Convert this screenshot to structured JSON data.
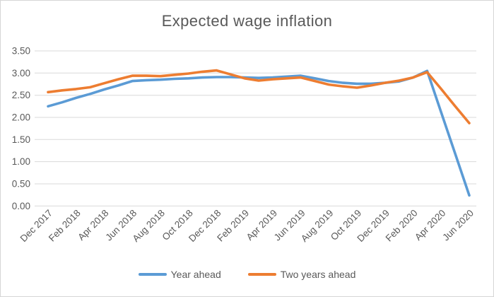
{
  "title": "Expected wage inflation",
  "colors": {
    "series_blue": "#5B9BD5",
    "series_orange": "#ED7D31",
    "gridline": "#D9D9D9",
    "axis_text": "#595959",
    "title_text": "#595959",
    "frame_border": "#D6D6D6",
    "background": "#FFFFFF"
  },
  "chart_data": {
    "type": "line",
    "title": "Expected wage inflation",
    "xlabel": "",
    "ylabel": "",
    "ylim": [
      0,
      3.5
    ],
    "y_ticks": [
      "0.00",
      "0.50",
      "1.00",
      "1.50",
      "2.00",
      "2.50",
      "3.00",
      "3.50"
    ],
    "grid": "horizontal gridlines only",
    "legend_position": "bottom",
    "x_tick_label_rotation": 45,
    "x_tick_labels_shown": [
      "Dec 2017",
      "Feb 2018",
      "Apr 2018",
      "Jun 2018",
      "Aug 2018",
      "Oct 2018",
      "Dec 2018",
      "Feb 2019",
      "Apr 2019",
      "Jun 2019",
      "Aug 2019",
      "Oct 2019",
      "Dec 2019",
      "Feb 2020",
      "Apr 2020",
      "Jun 2020"
    ],
    "x": [
      "Dec 2017",
      "Jan 2018",
      "Feb 2018",
      "Mar 2018",
      "Apr 2018",
      "May 2018",
      "Jun 2018",
      "Jul 2018",
      "Aug 2018",
      "Sep 2018",
      "Oct 2018",
      "Nov 2018",
      "Dec 2018",
      "Jan 2019",
      "Feb 2019",
      "Mar 2019",
      "Apr 2019",
      "May 2019",
      "Jun 2019",
      "Jul 2019",
      "Aug 2019",
      "Sep 2019",
      "Oct 2019",
      "Nov 2019",
      "Dec 2019",
      "Jan 2020",
      "Feb 2020",
      "Mar 2020",
      "Apr 2020",
      "May 2020",
      "Jun 2020"
    ],
    "series": [
      {
        "name": "Year ahead",
        "color": "#5B9BD5",
        "values": [
          2.25,
          2.34,
          2.44,
          2.53,
          2.63,
          2.72,
          2.82,
          2.84,
          2.85,
          2.87,
          2.88,
          2.9,
          2.91,
          2.91,
          2.9,
          2.89,
          2.9,
          2.92,
          2.94,
          2.88,
          2.82,
          2.78,
          2.76,
          2.76,
          2.78,
          2.81,
          2.9,
          3.05,
          2.11,
          1.18,
          0.24
        ]
      },
      {
        "name": "Two years ahead",
        "color": "#ED7D31",
        "values": [
          2.57,
          2.61,
          2.64,
          2.68,
          2.77,
          2.86,
          2.94,
          2.94,
          2.93,
          2.96,
          2.99,
          3.03,
          3.06,
          2.97,
          2.88,
          2.83,
          2.86,
          2.88,
          2.9,
          2.82,
          2.74,
          2.7,
          2.67,
          2.72,
          2.78,
          2.83,
          2.9,
          3.02,
          2.64,
          2.25,
          1.87
        ]
      }
    ]
  }
}
